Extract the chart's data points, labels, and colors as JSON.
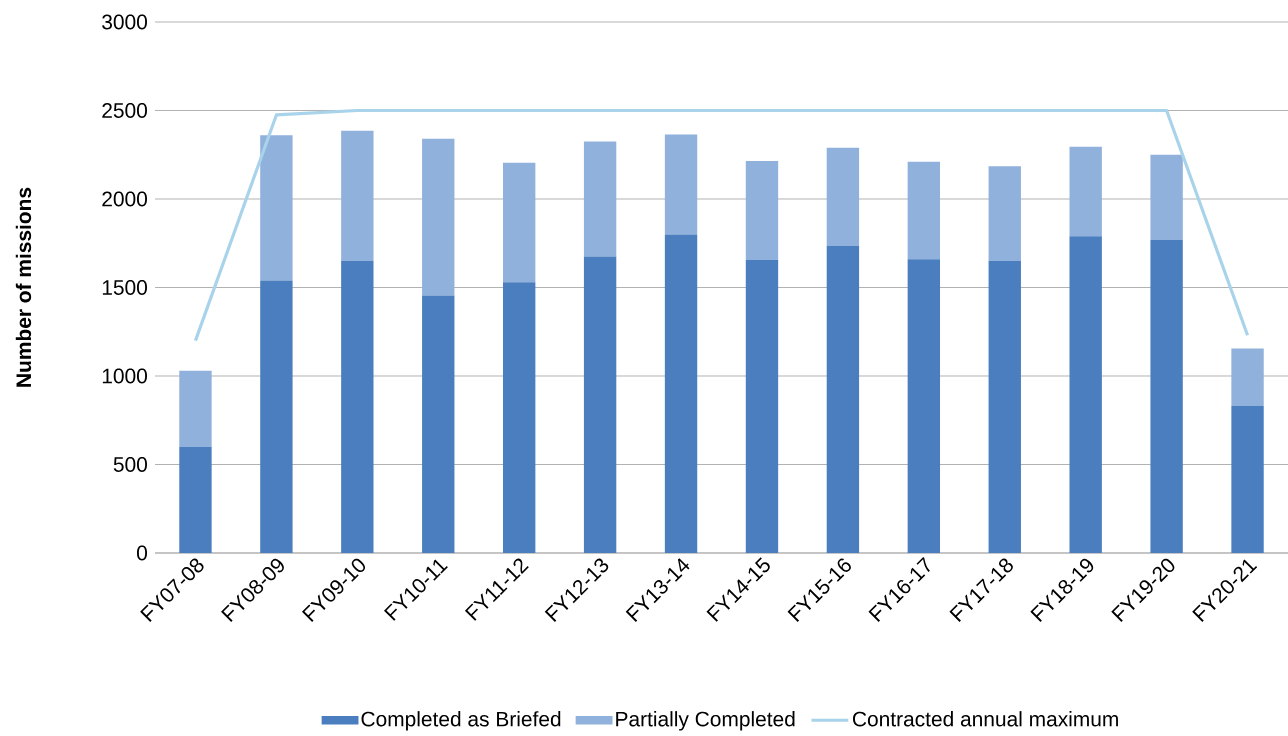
{
  "chart_data": {
    "type": "bar",
    "stacked": true,
    "ylabel": "Number of missions",
    "categories": [
      "FY07-08",
      "FY08-09",
      "FY09-10",
      "FY10-11",
      "FY11-12",
      "FY12-13",
      "FY13-14",
      "FY14-15",
      "FY15-16",
      "FY16-17",
      "FY17-18",
      "FY18-19",
      "FY19-20",
      "FY20-21"
    ],
    "series": [
      {
        "name": "Completed as Briefed",
        "type": "bar",
        "color": "#4a7ebf",
        "values": [
          600,
          1540,
          1650,
          1455,
          1530,
          1675,
          1800,
          1655,
          1735,
          1660,
          1650,
          1790,
          1770,
          830
        ]
      },
      {
        "name": "Partially Completed",
        "type": "bar",
        "color": "#8fb1db",
        "values": [
          430,
          820,
          735,
          885,
          675,
          650,
          565,
          560,
          555,
          550,
          535,
          505,
          480,
          325
        ]
      },
      {
        "name": "Contracted annual maximum",
        "type": "line",
        "color": "#a9d3ea",
        "values": [
          1200,
          2475,
          2500,
          2500,
          2500,
          2500,
          2500,
          2500,
          2500,
          2500,
          2500,
          2500,
          2500,
          1230
        ]
      }
    ],
    "ylim": [
      0,
      3000
    ],
    "yticks": [
      0,
      500,
      1000,
      1500,
      2000,
      2500,
      3000
    ],
    "grid": "y",
    "legend": "bottom"
  }
}
